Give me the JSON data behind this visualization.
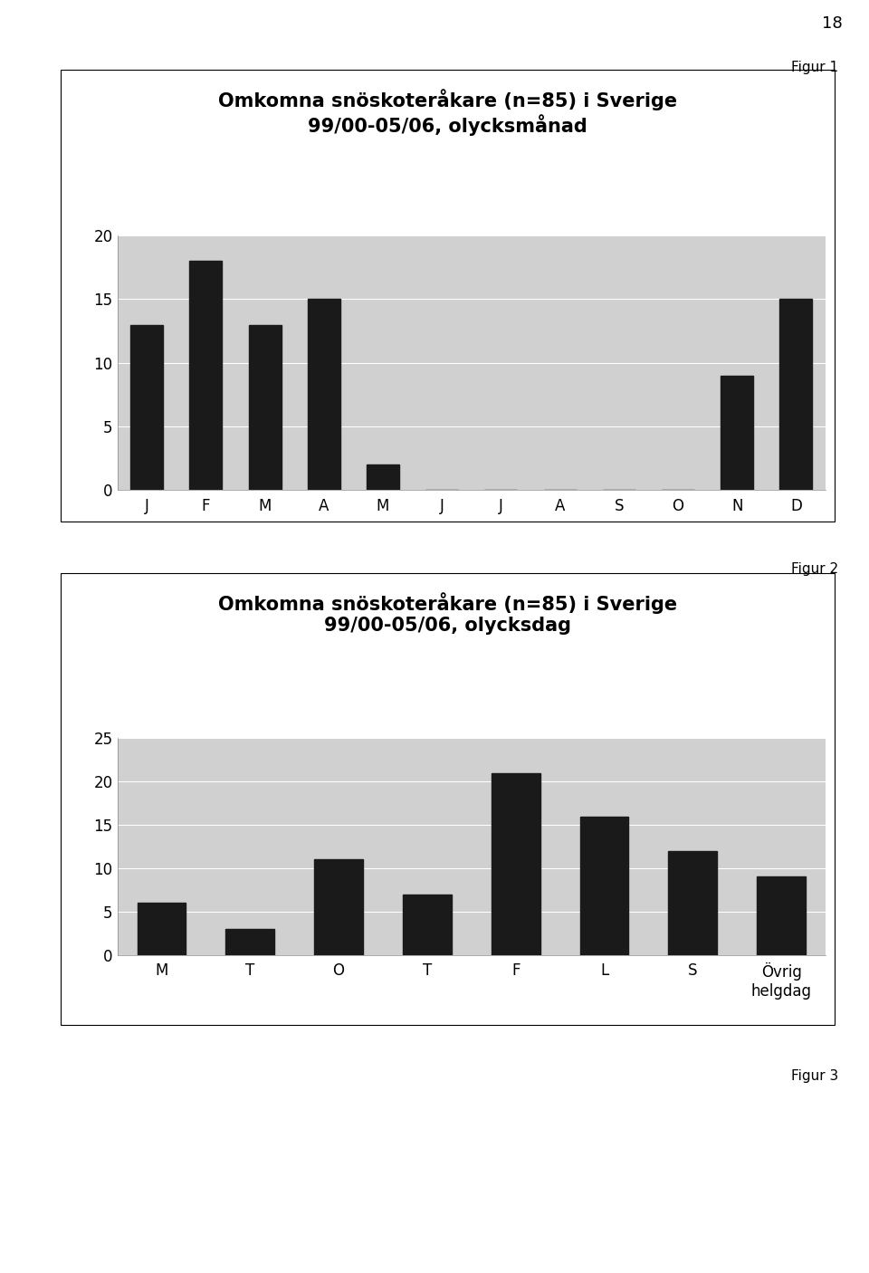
{
  "page_number": "18",
  "fig1_label": "Figur 1",
  "fig2_label": "Figur 2",
  "fig3_label": "Figur 3",
  "chart1": {
    "title_line1": "Omkomna snöskoteråkare (n=85) i Sverige",
    "title_line2": "99/00-05/06, olycksmånad",
    "categories": [
      "J",
      "F",
      "M",
      "A",
      "M",
      "J",
      "J",
      "A",
      "S",
      "O",
      "N",
      "D"
    ],
    "values": [
      13,
      18,
      13,
      15,
      2,
      0,
      0,
      0,
      0,
      0,
      9,
      15
    ],
    "ylim": [
      0,
      20
    ],
    "yticks": [
      0,
      5,
      10,
      15,
      20
    ],
    "bar_color": "#1a1a1a",
    "plot_bg_color": "#d0d0d0",
    "box_bg_color": "#ffffff"
  },
  "chart2": {
    "title_line1": "Omkomna snöskoteråkare (n=85) i Sverige",
    "title_line2": "99/00-05/06, olycksdag",
    "categories": [
      "M",
      "T",
      "O",
      "T",
      "F",
      "L",
      "S",
      "Övrig\nhelgdag"
    ],
    "values": [
      6,
      3,
      11,
      7,
      21,
      16,
      12,
      9
    ],
    "ylim": [
      0,
      25
    ],
    "yticks": [
      0,
      5,
      10,
      15,
      20,
      25
    ],
    "bar_color": "#1a1a1a",
    "plot_bg_color": "#d0d0d0",
    "box_bg_color": "#ffffff"
  },
  "page_bg_color": "#ffffff",
  "title_fontsize": 15,
  "tick_fontsize": 12,
  "fignum_fontsize": 11,
  "pagenum_fontsize": 13
}
